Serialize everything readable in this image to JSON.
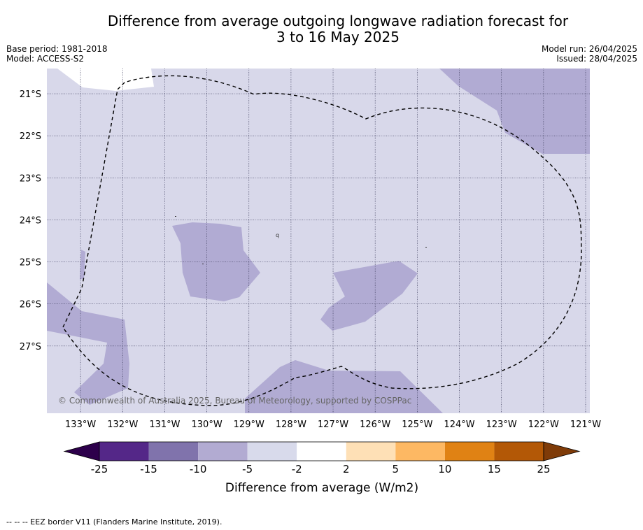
{
  "header": {
    "title_line1": "Difference from average outgoing longwave radiation forecast for",
    "title_line2": "3 to 16 May 2025",
    "base_period": "Base period: 1981-2018",
    "model": "Model: ACCESS-S2",
    "model_run": "Model run: 26/04/2025",
    "issued": "Issued: 28/04/2025"
  },
  "map": {
    "lon_labels": [
      "133°W",
      "132°W",
      "131°W",
      "130°W",
      "129°W",
      "128°W",
      "127°W",
      "126°W",
      "125°W",
      "124°W",
      "123°W",
      "122°W",
      "121°W"
    ],
    "lat_labels": [
      "21°S",
      "22°S",
      "23°S",
      "24°S",
      "25°S",
      "26°S",
      "27°S"
    ],
    "lon_range": [
      -133.8,
      -120.9
    ],
    "lat_range": [
      -28.6,
      -20.4
    ],
    "copyright": "© Commonwealth of Australia 2025, Bureau of Meteorology, supported by COSPPac",
    "small_marker": "q",
    "fill_colors": {
      "background": "#d8d8ea",
      "band_neg10_neg5": "#b1abd3",
      "band_neg2_2": "#ffffff"
    }
  },
  "colorbar": {
    "tick_labels": [
      "-25",
      "-15",
      "-10",
      "-5",
      "-2",
      "2",
      "5",
      "10",
      "15",
      "25"
    ],
    "colors": [
      "#2d004b",
      "#542788",
      "#8073ac",
      "#b2abd2",
      "#d8daeb",
      "#ffffff",
      "#fee0b6",
      "#fdb863",
      "#e08214",
      "#b35806",
      "#7f3b08"
    ],
    "label": "Difference from average (W/m2)"
  },
  "footer": {
    "legend_line_text": "--  --  -- EEZ border V11 (Flanders Marine Institute, 2019)."
  }
}
